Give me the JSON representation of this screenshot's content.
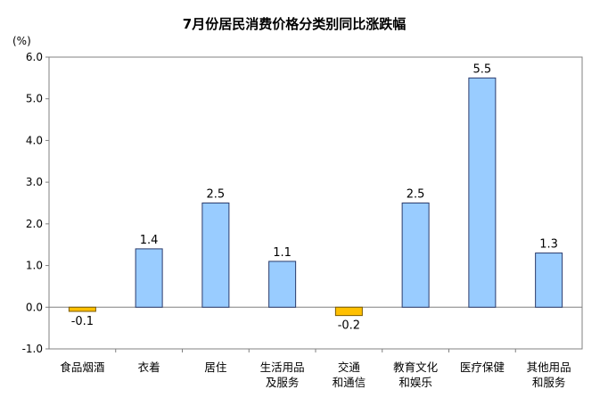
{
  "chart_data": {
    "type": "bar",
    "title": "7月份居民消费价格分类别同比涨跌幅",
    "unit": "(%)",
    "categories": [
      [
        "食品烟酒"
      ],
      [
        "衣着"
      ],
      [
        "居住"
      ],
      [
        "生活用品",
        "及服务"
      ],
      [
        "交通",
        "和通信"
      ],
      [
        "教育文化",
        "和娱乐"
      ],
      [
        "医疗保健"
      ],
      [
        "其他用品",
        "和服务"
      ]
    ],
    "values": [
      -0.1,
      1.4,
      2.5,
      1.1,
      -0.2,
      2.5,
      5.5,
      1.3
    ],
    "value_labels": [
      "-0.1",
      "1.4",
      "2.5",
      "1.1",
      "-0.2",
      "2.5",
      "5.5",
      "1.3"
    ],
    "ylim": [
      -1.0,
      6.0
    ],
    "yticks": [
      "-1.0",
      "0.0",
      "1.0",
      "2.0",
      "3.0",
      "4.0",
      "5.0",
      "6.0"
    ],
    "colors": {
      "positive_fill": "#99ccff",
      "positive_stroke": "#2a3b6c",
      "negative_fill": "#ffc000",
      "negative_stroke": "#7a5a00",
      "axis": "#808080"
    },
    "grid": false,
    "legend": "none"
  }
}
